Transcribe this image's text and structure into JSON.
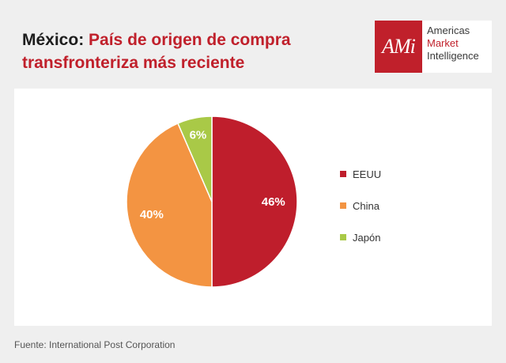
{
  "title": {
    "country": "México:",
    "text": "País de origen de compra transfronteriza más reciente"
  },
  "logo": {
    "mark": "AMi",
    "line1": "Americas",
    "line2": "Market",
    "line3": "Intelligence"
  },
  "source": "Fuente: International Post Corporation",
  "chart_data": {
    "type": "pie",
    "title": "México: País de origen de compra transfronteriza más reciente",
    "categories": [
      "EEUU",
      "China",
      "Japón"
    ],
    "values": [
      46,
      40,
      6
    ],
    "labels": [
      "46%",
      "40%",
      "6%"
    ],
    "colors": [
      "#bf1e2c",
      "#f39442",
      "#a9c947"
    ],
    "legend_position": "right"
  }
}
